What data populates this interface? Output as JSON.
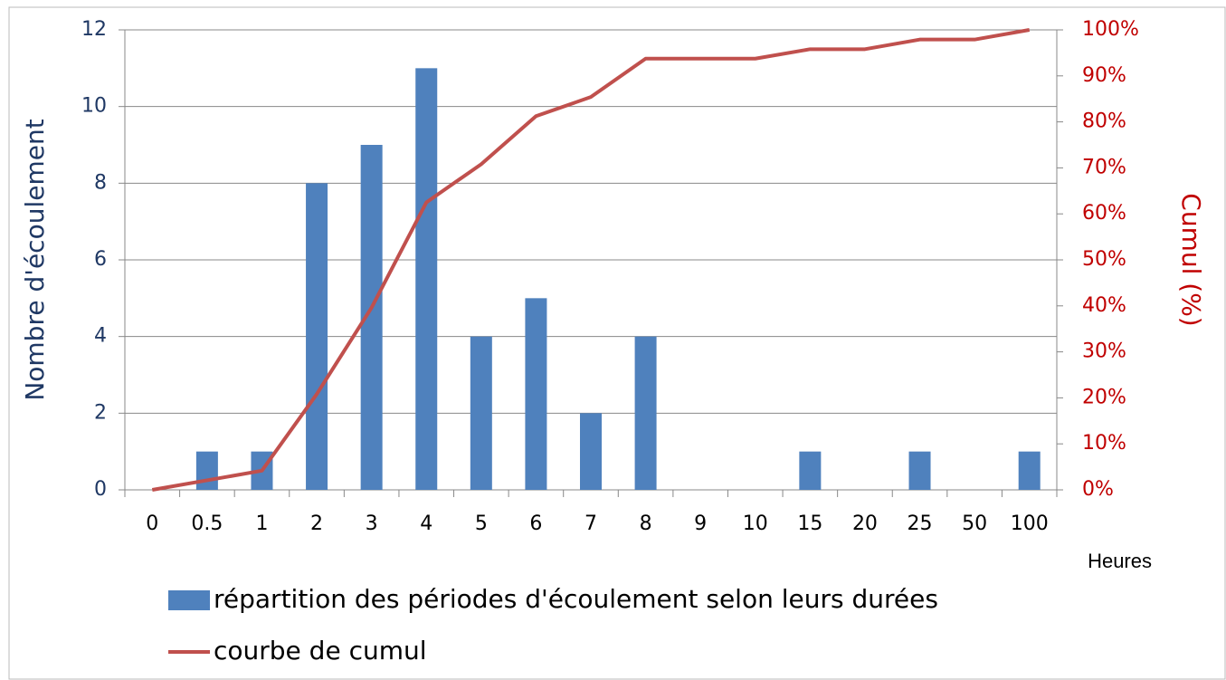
{
  "chart_data": {
    "type": "bar",
    "categories": [
      "0",
      "0.5",
      "1",
      "2",
      "3",
      "4",
      "5",
      "6",
      "7",
      "8",
      "9",
      "10",
      "15",
      "20",
      "25",
      "50",
      "100"
    ],
    "series": [
      {
        "name": "répartition des périodes d'écoulement selon leurs durées",
        "color": "#4f81bd",
        "type": "bar",
        "values": [
          0,
          1,
          1,
          8,
          9,
          11,
          4,
          5,
          2,
          4,
          0,
          0,
          1,
          0,
          1,
          0,
          1
        ]
      },
      {
        "name": "courbe de cumul",
        "color": "#c0504d",
        "type": "line",
        "axis": "y2",
        "values": [
          0,
          2.08,
          4.17,
          20.8,
          39.6,
          62.5,
          70.8,
          81.25,
          85.4,
          93.75,
          93.75,
          93.75,
          95.8,
          95.8,
          97.9,
          97.9,
          100
        ]
      }
    ],
    "xlabel": "Heures",
    "ylabel": "Nombre d'écoulement",
    "y2label": "Cumul (%)",
    "ylim": [
      0,
      12
    ],
    "yticks": [
      0,
      2,
      4,
      6,
      8,
      10,
      12
    ],
    "y2lim": [
      0,
      100
    ],
    "y2ticks": [
      {
        "value": 0,
        "label": "0%"
      },
      {
        "value": 10,
        "label": "10%"
      },
      {
        "value": 20,
        "label": "20%"
      },
      {
        "value": 30,
        "label": "30%"
      },
      {
        "value": 40,
        "label": "40%"
      },
      {
        "value": 50,
        "label": "50%"
      },
      {
        "value": 60,
        "label": "60%"
      },
      {
        "value": 70,
        "label": "70%"
      },
      {
        "value": 80,
        "label": "80%"
      },
      {
        "value": 90,
        "label": "90%"
      },
      {
        "value": 100,
        "label": "100%"
      }
    ],
    "grid": true,
    "legend": "bottom"
  }
}
